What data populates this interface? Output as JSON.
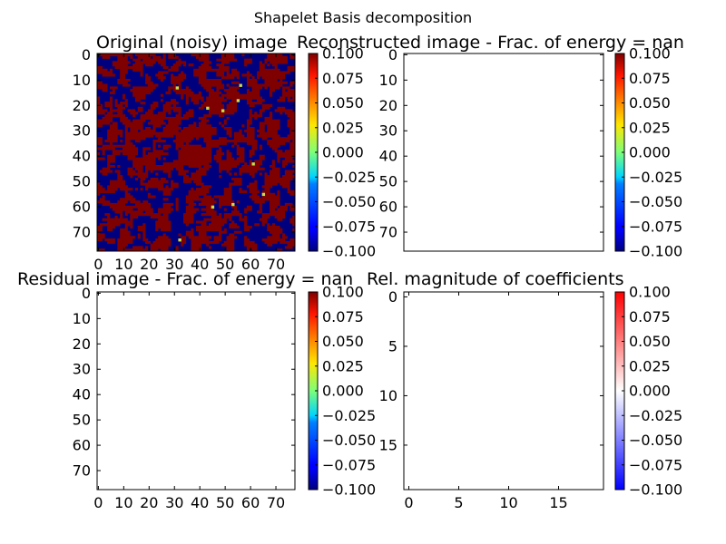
{
  "figure_title": "Shapelet Basis decomposition",
  "chart_data": [
    {
      "type": "heatmap",
      "title": "Original (noisy) image",
      "xlabel": "",
      "ylabel": "",
      "x_ticks": [
        "0",
        "10",
        "20",
        "30",
        "40",
        "50",
        "60",
        "70"
      ],
      "y_ticks": [
        "0",
        "10",
        "20",
        "30",
        "40",
        "50",
        "60",
        "70"
      ],
      "xlim": [
        -0.5,
        77.5
      ],
      "ylim": [
        77.5,
        -0.5
      ],
      "image_size": [
        78,
        78
      ],
      "colormap": "jet",
      "colorbar_ticks": [
        "0.100",
        "0.075",
        "0.050",
        "0.025",
        "0.000",
        "−0.025",
        "−0.050",
        "−0.075",
        "−0.100"
      ],
      "colorbar_range": [
        -0.1,
        0.1
      ],
      "bright_points": [
        [
          31,
          13
        ],
        [
          43,
          21
        ],
        [
          49,
          22
        ],
        [
          55,
          18
        ],
        [
          56,
          12
        ],
        [
          61,
          43
        ],
        [
          65,
          55
        ],
        [
          53,
          59
        ],
        [
          45,
          60
        ],
        [
          32,
          73
        ]
      ],
      "central_blob": {
        "x": 38,
        "y": 40
      }
    },
    {
      "type": "heatmap",
      "title": "Reconstructed image - Frac. of energy = nan",
      "xlabel": "",
      "ylabel": "",
      "x_ticks": [],
      "y_ticks": [
        "0",
        "10",
        "20",
        "30",
        "40",
        "50",
        "60",
        "70"
      ],
      "xlim": [
        -0.5,
        77.5
      ],
      "ylim": [
        77.5,
        -0.5
      ],
      "colormap": "jet",
      "colorbar_ticks": [
        "0.100",
        "0.075",
        "0.050",
        "0.025",
        "0.000",
        "−0.025",
        "−0.050",
        "−0.075",
        "−0.100"
      ],
      "colorbar_range": [
        -0.1,
        0.1
      ],
      "values": "nan"
    },
    {
      "type": "heatmap",
      "title": "Residual image - Frac. of energy = nan",
      "xlabel": "",
      "ylabel": "",
      "x_ticks": [
        "0",
        "10",
        "20",
        "30",
        "40",
        "50",
        "60",
        "70"
      ],
      "y_ticks": [
        "0",
        "10",
        "20",
        "30",
        "40",
        "50",
        "60",
        "70"
      ],
      "xlim": [
        -0.5,
        77.5
      ],
      "ylim": [
        77.5,
        -0.5
      ],
      "colormap": "jet",
      "colorbar_ticks": [
        "0.100",
        "0.075",
        "0.050",
        "0.025",
        "0.000",
        "−0.025",
        "−0.050",
        "−0.075",
        "−0.100"
      ],
      "colorbar_range": [
        -0.1,
        0.1
      ],
      "values": "nan"
    },
    {
      "type": "heatmap",
      "title": "Rel. magnitude of coefficients",
      "xlabel": "",
      "ylabel": "",
      "x_ticks": [
        "0",
        "5",
        "10",
        "15"
      ],
      "y_ticks": [
        "0",
        "5",
        "10",
        "15"
      ],
      "xlim": [
        -0.5,
        19.5
      ],
      "ylim": [
        19.5,
        -0.5
      ],
      "colormap": "bwr",
      "colorbar_ticks": [
        "0.100",
        "0.075",
        "0.050",
        "0.025",
        "0.000",
        "−0.025",
        "−0.050",
        "−0.075",
        "−0.100"
      ],
      "colorbar_range": [
        -0.1,
        0.1
      ],
      "values": "nan"
    }
  ]
}
